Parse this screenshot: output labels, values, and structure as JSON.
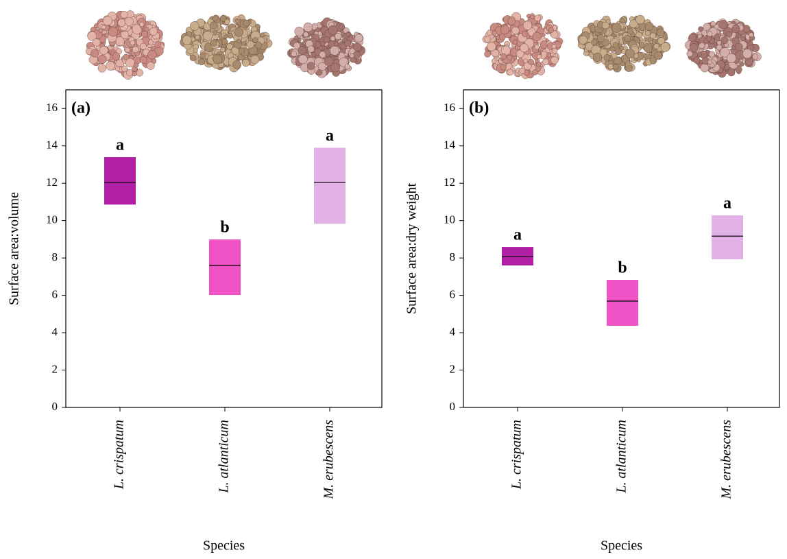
{
  "chart_data": [
    {
      "type": "box",
      "panel_label": "(a)",
      "y_label": "Surface area:volume",
      "x_label": "Species",
      "categories": [
        "L. crispatum",
        "L. atlanticum",
        "M. erubescens"
      ],
      "low": [
        10.86,
        6.02,
        9.83
      ],
      "median": [
        12.04,
        7.6,
        12.04
      ],
      "high": [
        13.4,
        8.99,
        13.9
      ],
      "letters": [
        "a",
        "b",
        "a"
      ],
      "colors": [
        "#b11fa6",
        "#ee52c5",
        "#e2b1e6"
      ],
      "ylim": [
        0,
        17
      ],
      "yticks": [
        0,
        2,
        4,
        6,
        8,
        10,
        12,
        14,
        16
      ]
    },
    {
      "type": "box",
      "panel_label": "(b)",
      "y_label": "Surface area:dry weight",
      "x_label": "Species",
      "categories": [
        "L. crispatum",
        "L. atlanticum",
        "M. erubescens"
      ],
      "low": [
        7.6,
        4.37,
        7.93
      ],
      "median": [
        8.07,
        5.69,
        9.17
      ],
      "high": [
        8.59,
        6.83,
        10.28
      ],
      "letters": [
        "a",
        "b",
        "a"
      ],
      "colors": [
        "#b11fa6",
        "#ee52c5",
        "#e2b1e6"
      ],
      "ylim": [
        0,
        17
      ],
      "yticks": [
        0,
        2,
        4,
        6,
        8,
        10,
        12,
        14,
        16
      ]
    }
  ]
}
